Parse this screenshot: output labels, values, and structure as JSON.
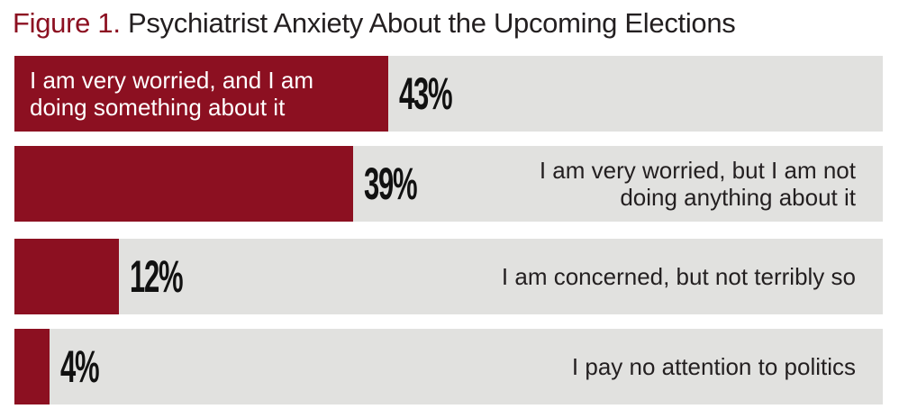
{
  "chart_data": {
    "type": "bar",
    "orientation": "horizontal",
    "figure_label": "Figure 1.",
    "title": "Psychiatrist Anxiety About the Upcoming Elections",
    "categories": [
      "I am very worried, and I am doing something about it",
      "I am very worried, but I am not doing anything about it",
      "I am concerned, but not terribly so",
      "I pay no attention to politics"
    ],
    "values": [
      43,
      39,
      12,
      4
    ],
    "value_labels": [
      "43%",
      "39%",
      "12%",
      "4%"
    ],
    "color": "#8c1021",
    "track_color": "#e1e1df",
    "title_label_color": "#8c1021",
    "xlim": [
      0,
      100
    ]
  }
}
